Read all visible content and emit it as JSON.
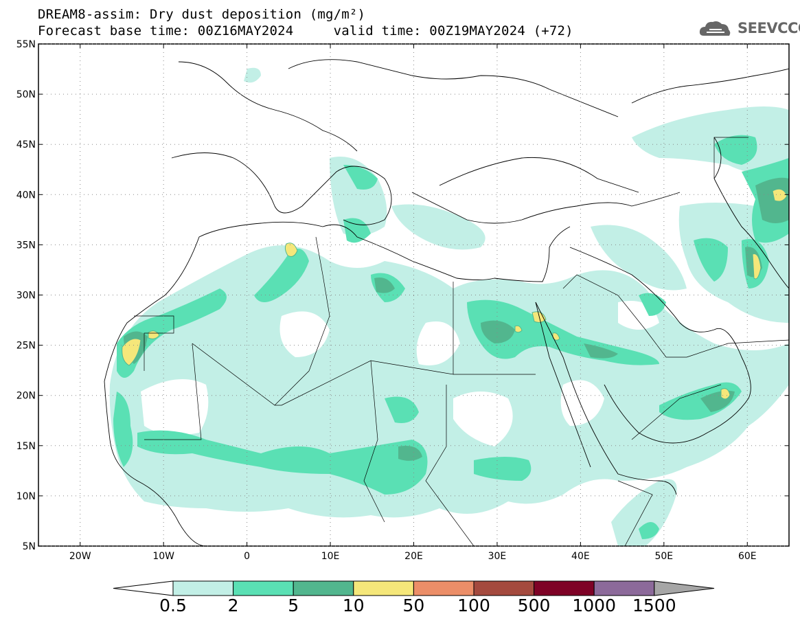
{
  "title": {
    "line1": "DREAM8-assim: Dry dust deposition (mg/m²)",
    "line2": "Forecast base time: 00Z16MAY2024     valid time: 00Z19MAY2024 (+72)"
  },
  "logo": {
    "text": "SEEVCCC",
    "icon": "cloud-icon"
  },
  "map": {
    "lon_range": [
      -25,
      65
    ],
    "lat_range": [
      5,
      55
    ],
    "lat_ticks": [
      {
        "value": 55,
        "label": "55N"
      },
      {
        "value": 50,
        "label": "50N"
      },
      {
        "value": 45,
        "label": "45N"
      },
      {
        "value": 40,
        "label": "40N"
      },
      {
        "value": 35,
        "label": "35N"
      },
      {
        "value": 30,
        "label": "30N"
      },
      {
        "value": 25,
        "label": "25N"
      },
      {
        "value": 20,
        "label": "20N"
      },
      {
        "value": 15,
        "label": "15N"
      },
      {
        "value": 10,
        "label": "10N"
      },
      {
        "value": 5,
        "label": "5N"
      }
    ],
    "lon_ticks": [
      {
        "value": -20,
        "label": "20W"
      },
      {
        "value": -10,
        "label": "10W"
      },
      {
        "value": 0,
        "label": "0"
      },
      {
        "value": 10,
        "label": "10E"
      },
      {
        "value": 20,
        "label": "20E"
      },
      {
        "value": 30,
        "label": "30E"
      },
      {
        "value": 40,
        "label": "40E"
      },
      {
        "value": 50,
        "label": "50E"
      },
      {
        "value": 60,
        "label": "60E"
      }
    ],
    "grid": "dotted"
  },
  "legend": {
    "levels": [
      "0.5",
      "2",
      "5",
      "10",
      "50",
      "100",
      "500",
      "1000",
      "1500"
    ],
    "colors": [
      "#c2efe6",
      "#5ae0b4",
      "#52b68e",
      "#f5e77a",
      "#ec8e68",
      "#a44a3e",
      "#7e0226",
      "#8c6a9a",
      "#a6a6a6"
    ]
  }
}
